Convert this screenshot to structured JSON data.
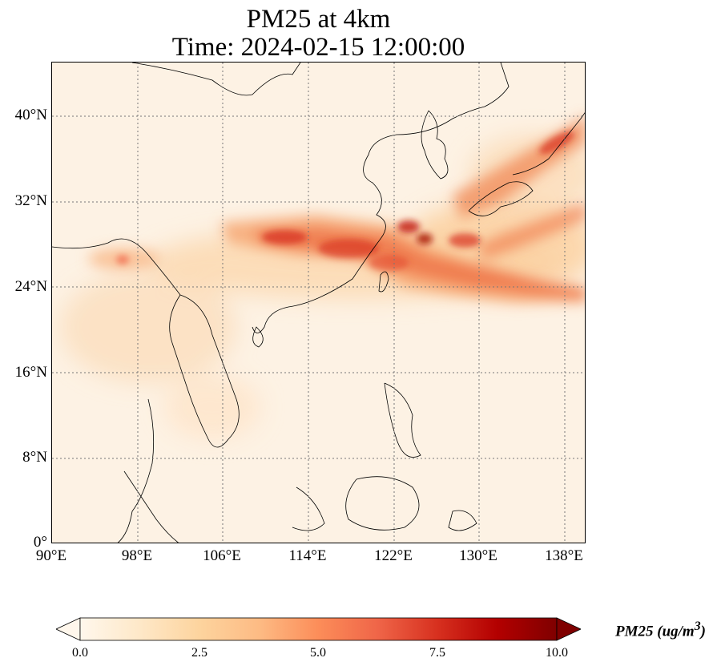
{
  "title": {
    "line1": "PM25 at 4km",
    "line2": "Time: 2024-02-15 12:00:00"
  },
  "map": {
    "extent": {
      "lon": [
        90,
        140
      ],
      "lat": [
        0,
        45
      ]
    },
    "lat_ticks": [
      "40°N",
      "32°N",
      "24°N",
      "16°N",
      "8°N",
      "0°"
    ],
    "lon_ticks": [
      "90°E",
      "98°E",
      "106°E",
      "114°E",
      "122°E",
      "130°E",
      "138°E"
    ],
    "gridlines": "dotted",
    "colormap": "OrRd",
    "plume_regions": [
      "South China / East China Sea band",
      "Taiwan Strait",
      "Japan",
      "Northern Myanmar"
    ]
  },
  "colorbar": {
    "label": "PM25 (ug/m",
    "label_sup": "3",
    "label_close": ")",
    "ticks": [
      "0.0",
      "2.5",
      "5.0",
      "7.5",
      "10.0"
    ],
    "range": [
      0,
      10
    ],
    "extend": "both",
    "colors": [
      "#fff7ec",
      "#fee8c8",
      "#fdd49e",
      "#fdbb84",
      "#fc8d59",
      "#ef6548",
      "#d7301f",
      "#b30000",
      "#7f0000"
    ]
  }
}
